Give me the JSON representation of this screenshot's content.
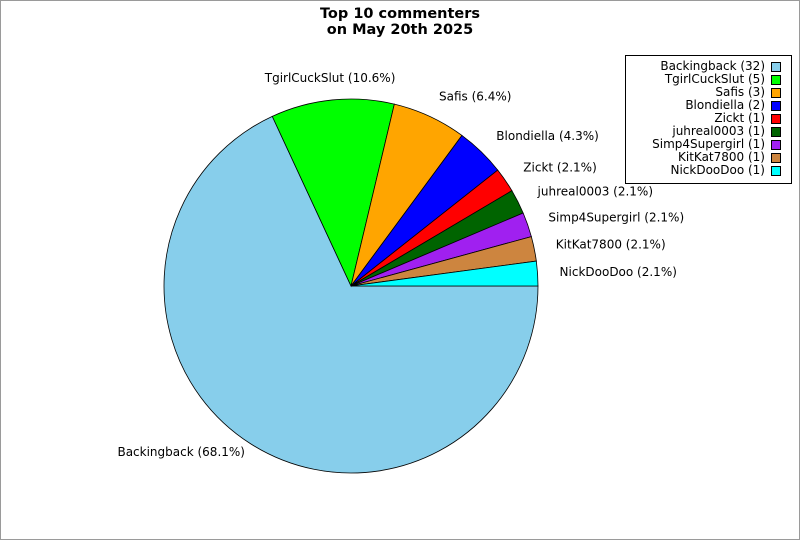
{
  "chart_data": {
    "type": "pie",
    "title_lines": [
      "Top 10 commenters",
      "on May 20th 2025"
    ],
    "slices": [
      {
        "name": "Backingback",
        "count": 32,
        "percent_label": "68.1%",
        "color": "#87CEEB"
      },
      {
        "name": "TgirlCuckSlut",
        "count": 5,
        "percent_label": "10.6%",
        "color": "#00FF00"
      },
      {
        "name": "Safis",
        "count": 3,
        "percent_label": "6.4%",
        "color": "#FFA500"
      },
      {
        "name": "Blondiella",
        "count": 2,
        "percent_label": "4.3%",
        "color": "#0000FF"
      },
      {
        "name": "Zickt",
        "count": 1,
        "percent_label": "2.1%",
        "color": "#FF0000"
      },
      {
        "name": "juhreal0003",
        "count": 1,
        "percent_label": "2.1%",
        "color": "#006400"
      },
      {
        "name": "Simp4Supergirl",
        "count": 1,
        "percent_label": "2.1%",
        "color": "#A020F0"
      },
      {
        "name": "KitKat7800",
        "count": 1,
        "percent_label": "2.1%",
        "color": "#CD853F"
      },
      {
        "name": "NickDooDoo",
        "count": 1,
        "percent_label": "2.1%",
        "color": "#00FFFF"
      }
    ],
    "start_angle_deg": 0,
    "direction": "clockwise",
    "legend_position": "top-right"
  }
}
